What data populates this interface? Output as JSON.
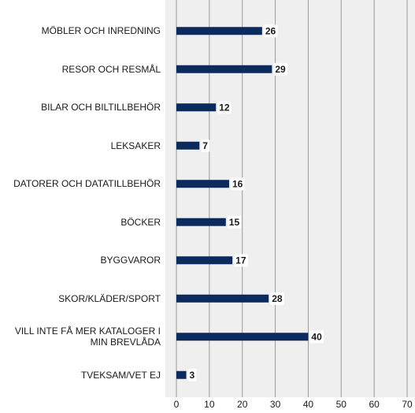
{
  "chart_data": {
    "type": "bar",
    "orientation": "horizontal",
    "categories": [
      "MÖBLER OCH INREDNING",
      "RESOR OCH RESMÅL",
      "BILAR OCH BILTILLBEHÖR",
      "LEKSAKER",
      "DATORER OCH DATATILLBEHÖR",
      "BÖCKER",
      "BYGGVAROR",
      "SKOR/KLÄDER/SPORT",
      "VILL INTE FÅ MER KATALOGER I MIN BREVLÅDA",
      "TVEKSAM/VET EJ"
    ],
    "values": [
      26,
      29,
      12,
      7,
      16,
      15,
      17,
      28,
      40,
      3
    ],
    "color": "#0b2a5e",
    "xlim": [
      0,
      70
    ],
    "xticks": [
      0,
      10,
      20,
      30,
      40,
      50,
      60,
      70
    ],
    "grid": true
  }
}
